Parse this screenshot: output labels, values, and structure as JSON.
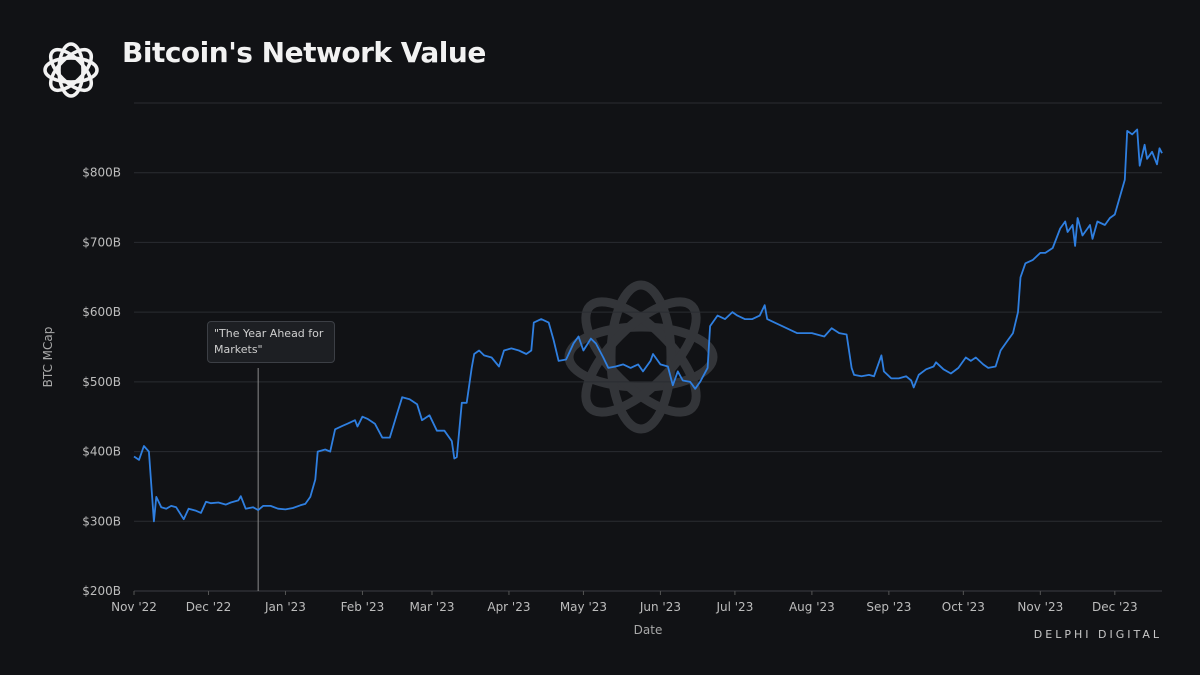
{
  "title": "Bitcoin's Network Value",
  "footer": "DELPHI DIGITAL",
  "icons": {
    "logo": "braided-ring-logo",
    "watermark": "braided-ring-watermark"
  },
  "chart_data": {
    "type": "line",
    "title": "Bitcoin's Network Value",
    "xlabel": "Date",
    "ylabel": "BTC MCap",
    "ylim": [
      200,
      900
    ],
    "y_ticks": [
      "$200B",
      "$300B",
      "$400B",
      "$500B",
      "$600B",
      "$700B",
      "$800B"
    ],
    "y_tick_values": [
      200,
      300,
      400,
      500,
      600,
      700,
      800
    ],
    "x_ticks": [
      "Nov '22",
      "Dec '22",
      "Jan '23",
      "Feb '23",
      "Mar '23",
      "Apr '23",
      "May '23",
      "Jun '23",
      "Jul '23",
      "Aug '23",
      "Sep '23",
      "Oct '23",
      "Nov '23",
      "Dec '23"
    ],
    "x_tick_dates": [
      "2022-11-01",
      "2022-12-01",
      "2023-01-01",
      "2023-02-01",
      "2023-03-01",
      "2023-04-01",
      "2023-05-01",
      "2023-06-01",
      "2023-07-01",
      "2023-08-01",
      "2023-09-01",
      "2023-10-01",
      "2023-11-01",
      "2023-12-01"
    ],
    "xlim": [
      "2022-11-01",
      "2023-12-20"
    ],
    "grid": true,
    "line_color": "#2f7fe0",
    "annotation": {
      "date": "2022-12-21",
      "text": "\"The Year Ahead for Markets\""
    },
    "series": [
      {
        "points": [
          [
            "2022-11-01",
            393
          ],
          [
            "2022-11-03",
            388
          ],
          [
            "2022-11-05",
            408
          ],
          [
            "2022-11-07",
            400
          ],
          [
            "2022-11-09",
            300
          ],
          [
            "2022-11-10",
            335
          ],
          [
            "2022-11-12",
            320
          ],
          [
            "2022-11-14",
            318
          ],
          [
            "2022-11-16",
            322
          ],
          [
            "2022-11-18",
            320
          ],
          [
            "2022-11-21",
            303
          ],
          [
            "2022-11-23",
            318
          ],
          [
            "2022-11-26",
            315
          ],
          [
            "2022-11-28",
            312
          ],
          [
            "2022-11-30",
            328
          ],
          [
            "2022-12-02",
            326
          ],
          [
            "2022-12-05",
            327
          ],
          [
            "2022-12-08",
            324
          ],
          [
            "2022-12-10",
            327
          ],
          [
            "2022-12-13",
            330
          ],
          [
            "2022-12-14",
            336
          ],
          [
            "2022-12-16",
            318
          ],
          [
            "2022-12-19",
            320
          ],
          [
            "2022-12-21",
            316
          ],
          [
            "2022-12-23",
            322
          ],
          [
            "2022-12-26",
            322
          ],
          [
            "2022-12-29",
            318
          ],
          [
            "2023-01-01",
            317
          ],
          [
            "2023-01-04",
            319
          ],
          [
            "2023-01-07",
            323
          ],
          [
            "2023-01-09",
            325
          ],
          [
            "2023-01-11",
            335
          ],
          [
            "2023-01-13",
            360
          ],
          [
            "2023-01-14",
            400
          ],
          [
            "2023-01-17",
            403
          ],
          [
            "2023-01-19",
            400
          ],
          [
            "2023-01-21",
            432
          ],
          [
            "2023-01-24",
            437
          ],
          [
            "2023-01-26",
            440
          ],
          [
            "2023-01-29",
            445
          ],
          [
            "2023-01-30",
            436
          ],
          [
            "2023-02-01",
            450
          ],
          [
            "2023-02-03",
            447
          ],
          [
            "2023-02-06",
            440
          ],
          [
            "2023-02-09",
            420
          ],
          [
            "2023-02-12",
            420
          ],
          [
            "2023-02-15",
            455
          ],
          [
            "2023-02-17",
            478
          ],
          [
            "2023-02-20",
            475
          ],
          [
            "2023-02-23",
            468
          ],
          [
            "2023-02-25",
            445
          ],
          [
            "2023-02-28",
            452
          ],
          [
            "2023-03-03",
            430
          ],
          [
            "2023-03-06",
            430
          ],
          [
            "2023-03-09",
            415
          ],
          [
            "2023-03-10",
            390
          ],
          [
            "2023-03-11",
            392
          ],
          [
            "2023-03-13",
            470
          ],
          [
            "2023-03-15",
            470
          ],
          [
            "2023-03-17",
            520
          ],
          [
            "2023-03-18",
            540
          ],
          [
            "2023-03-20",
            545
          ],
          [
            "2023-03-22",
            538
          ],
          [
            "2023-03-25",
            535
          ],
          [
            "2023-03-28",
            522
          ],
          [
            "2023-03-30",
            545
          ],
          [
            "2023-04-02",
            548
          ],
          [
            "2023-04-05",
            545
          ],
          [
            "2023-04-08",
            540
          ],
          [
            "2023-04-10",
            545
          ],
          [
            "2023-04-11",
            585
          ],
          [
            "2023-04-14",
            590
          ],
          [
            "2023-04-17",
            585
          ],
          [
            "2023-04-19",
            560
          ],
          [
            "2023-04-21",
            530
          ],
          [
            "2023-04-24",
            532
          ],
          [
            "2023-04-27",
            555
          ],
          [
            "2023-04-29",
            565
          ],
          [
            "2023-05-01",
            545
          ],
          [
            "2023-05-04",
            562
          ],
          [
            "2023-05-06",
            555
          ],
          [
            "2023-05-09",
            535
          ],
          [
            "2023-05-11",
            520
          ],
          [
            "2023-05-14",
            522
          ],
          [
            "2023-05-17",
            525
          ],
          [
            "2023-05-20",
            520
          ],
          [
            "2023-05-23",
            525
          ],
          [
            "2023-05-25",
            515
          ],
          [
            "2023-05-28",
            530
          ],
          [
            "2023-05-29",
            540
          ],
          [
            "2023-06-01",
            525
          ],
          [
            "2023-06-04",
            522
          ],
          [
            "2023-06-06",
            495
          ],
          [
            "2023-06-08",
            515
          ],
          [
            "2023-06-10",
            502
          ],
          [
            "2023-06-13",
            500
          ],
          [
            "2023-06-15",
            490
          ],
          [
            "2023-06-17",
            500
          ],
          [
            "2023-06-20",
            520
          ],
          [
            "2023-06-21",
            580
          ],
          [
            "2023-06-24",
            595
          ],
          [
            "2023-06-27",
            590
          ],
          [
            "2023-06-30",
            600
          ],
          [
            "2023-07-02",
            595
          ],
          [
            "2023-07-05",
            590
          ],
          [
            "2023-07-08",
            590
          ],
          [
            "2023-07-11",
            595
          ],
          [
            "2023-07-13",
            610
          ],
          [
            "2023-07-14",
            590
          ],
          [
            "2023-07-17",
            585
          ],
          [
            "2023-07-20",
            580
          ],
          [
            "2023-07-23",
            575
          ],
          [
            "2023-07-26",
            570
          ],
          [
            "2023-07-28",
            570
          ],
          [
            "2023-08-01",
            570
          ],
          [
            "2023-08-03",
            568
          ],
          [
            "2023-08-06",
            565
          ],
          [
            "2023-08-09",
            577
          ],
          [
            "2023-08-12",
            570
          ],
          [
            "2023-08-15",
            568
          ],
          [
            "2023-08-17",
            520
          ],
          [
            "2023-08-18",
            510
          ],
          [
            "2023-08-21",
            508
          ],
          [
            "2023-08-24",
            510
          ],
          [
            "2023-08-26",
            508
          ],
          [
            "2023-08-29",
            538
          ],
          [
            "2023-08-30",
            515
          ],
          [
            "2023-09-02",
            505
          ],
          [
            "2023-09-05",
            505
          ],
          [
            "2023-09-08",
            508
          ],
          [
            "2023-09-10",
            502
          ],
          [
            "2023-09-11",
            492
          ],
          [
            "2023-09-13",
            510
          ],
          [
            "2023-09-16",
            518
          ],
          [
            "2023-09-19",
            522
          ],
          [
            "2023-09-20",
            528
          ],
          [
            "2023-09-23",
            518
          ],
          [
            "2023-09-26",
            512
          ],
          [
            "2023-09-29",
            520
          ],
          [
            "2023-10-02",
            535
          ],
          [
            "2023-10-04",
            530
          ],
          [
            "2023-10-06",
            535
          ],
          [
            "2023-10-09",
            525
          ],
          [
            "2023-10-11",
            520
          ],
          [
            "2023-10-14",
            522
          ],
          [
            "2023-10-16",
            545
          ],
          [
            "2023-10-19",
            560
          ],
          [
            "2023-10-21",
            570
          ],
          [
            "2023-10-23",
            600
          ],
          [
            "2023-10-24",
            650
          ],
          [
            "2023-10-26",
            670
          ],
          [
            "2023-10-29",
            675
          ],
          [
            "2023-11-01",
            685
          ],
          [
            "2023-11-03",
            685
          ],
          [
            "2023-11-06",
            692
          ],
          [
            "2023-11-09",
            720
          ],
          [
            "2023-11-11",
            730
          ],
          [
            "2023-11-12",
            715
          ],
          [
            "2023-11-14",
            725
          ],
          [
            "2023-11-15",
            695
          ],
          [
            "2023-11-16",
            735
          ],
          [
            "2023-11-18",
            710
          ],
          [
            "2023-11-21",
            725
          ],
          [
            "2023-11-22",
            705
          ],
          [
            "2023-11-24",
            730
          ],
          [
            "2023-11-27",
            725
          ],
          [
            "2023-11-29",
            735
          ],
          [
            "2023-12-01",
            740
          ],
          [
            "2023-12-03",
            765
          ],
          [
            "2023-12-05",
            790
          ],
          [
            "2023-12-06",
            860
          ],
          [
            "2023-12-08",
            855
          ],
          [
            "2023-12-10",
            862
          ],
          [
            "2023-12-11",
            810
          ],
          [
            "2023-12-13",
            840
          ],
          [
            "2023-12-14",
            820
          ],
          [
            "2023-12-16",
            830
          ],
          [
            "2023-12-18",
            812
          ],
          [
            "2023-12-19",
            835
          ],
          [
            "2023-12-20",
            828
          ]
        ]
      }
    ]
  }
}
